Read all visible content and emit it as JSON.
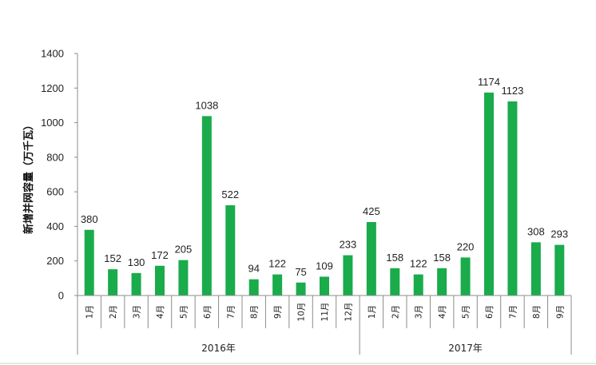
{
  "chart_data": {
    "type": "bar",
    "ylabel": "新增并网容量（万千瓦）",
    "ylim": [
      0,
      1400
    ],
    "yticks": [
      0,
      200,
      400,
      600,
      800,
      1000,
      1200,
      1400
    ],
    "grid": false,
    "bar_color": "#1aab4b",
    "groups": [
      {
        "label": "2016年",
        "categories": [
          "1月",
          "2月",
          "3月",
          "4月",
          "5月",
          "6月",
          "7月",
          "8月",
          "9月",
          "10月",
          "11月",
          "12月"
        ]
      },
      {
        "label": "2017年",
        "categories": [
          "1月",
          "2月",
          "3月",
          "4月",
          "5月",
          "6月",
          "7月",
          "8月",
          "9月"
        ]
      }
    ],
    "values": [
      380,
      152,
      130,
      172,
      205,
      1038,
      522,
      94,
      122,
      75,
      109,
      233,
      425,
      158,
      122,
      158,
      220,
      1174,
      1123,
      308,
      293
    ]
  }
}
